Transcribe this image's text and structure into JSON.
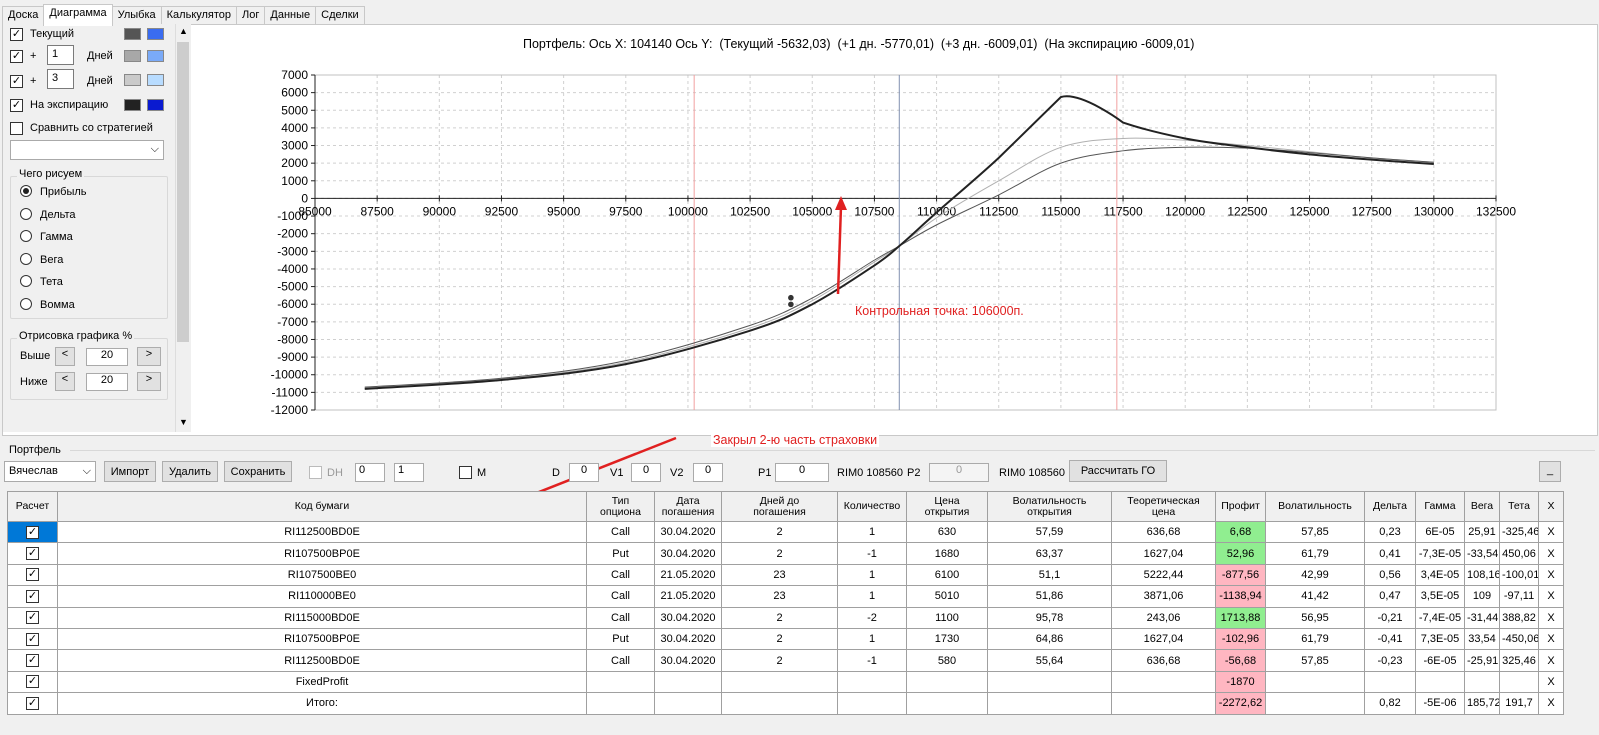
{
  "tabs": [
    "Доска",
    "Диаграмма",
    "Улыбка",
    "Калькулятор",
    "Лог",
    "Данные",
    "Сделки"
  ],
  "active_tab": "Диаграмма",
  "left_panel": {
    "current_label": "Текущий",
    "plus_label": "+",
    "days_label": "Дней",
    "plus1_value": "1",
    "plus3_value": "3",
    "expiry_label": "На экспирацию",
    "compare_label": "Сравнить со стратегией",
    "draw_group_title": "Чего рисуем",
    "radios": [
      "Прибыль",
      "Дельта",
      "Гамма",
      "Вега",
      "Тета",
      "Вомма"
    ],
    "selected_radio": "Прибыль",
    "render_group_title": "Отрисовка графика %",
    "above_label": "Выше",
    "below_label": "Ниже",
    "above_value": "20",
    "below_value": "20",
    "arrow_left": "<",
    "arrow_right": ">",
    "swatch_colors": [
      [
        "#555555",
        "#3a6cf0"
      ],
      [
        "#a8a8a8",
        "#7aaaf8"
      ],
      [
        "#cacaca",
        "#b8dcff"
      ],
      [
        "#222222",
        "#0a1ad0"
      ]
    ]
  },
  "chart_header": "Портфель: Ось X: 104140 Ось Y:  (Текущий -5632,03)  (+1 дн. -5770,01)  (+3 дн. -6009,01)  (На экспирацию -6009,01)",
  "chart_annotation": "Контрольная точка: 106000п.",
  "arrow_annotation": "Закрыл 2-ю часть страховки",
  "chart_data": {
    "type": "line",
    "xlim": [
      85000,
      132500
    ],
    "ylim": [
      -12000,
      7000
    ],
    "x_ticks": [
      "85000",
      "87500",
      "90000",
      "92500",
      "95000",
      "97500",
      "100000",
      "102500",
      "105000",
      "107500",
      "110000",
      "112500",
      "115000",
      "117500",
      "120000",
      "122500",
      "125000",
      "127500",
      "130000",
      "132500"
    ],
    "y_ticks": [
      "7000",
      "6000",
      "5000",
      "4000",
      "3000",
      "2000",
      "1000",
      "0",
      "-1000",
      "-2000",
      "-3000",
      "-4000",
      "-5000",
      "-6000",
      "-7000",
      "-8000",
      "-9000",
      "-10000",
      "-11000",
      "-12000"
    ],
    "vertical_lines": [
      {
        "x": 100250,
        "color": "#f2a0a0"
      },
      {
        "x": 108500,
        "color": "#8090b0"
      },
      {
        "x": 117250,
        "color": "#f2a0a0"
      }
    ],
    "series": [
      {
        "color": "#222222",
        "width": 2,
        "x": [
          87000,
          92500,
          97500,
          102500,
          105000,
          107500,
          108500,
          110000,
          112500,
          115000,
          117500,
          120000,
          122500,
          125000,
          127500,
          130000
        ],
        "y": [
          -10800,
          -10300,
          -9400,
          -7500,
          -6000,
          -3800,
          -2700,
          -800,
          2300,
          5750,
          4300,
          3400,
          2900,
          2500,
          2200,
          1950
        ]
      },
      {
        "color": "#555555",
        "width": 1,
        "x": [
          87000,
          92500,
          97500,
          102500,
          105000,
          107500,
          108500,
          110000,
          112500,
          115000,
          117500,
          120000,
          122500,
          125000,
          127500,
          130000
        ],
        "y": [
          -10700,
          -10200,
          -9200,
          -7200,
          -5650,
          -3500,
          -2700,
          -1500,
          200,
          2000,
          2700,
          2900,
          2850,
          2600,
          2300,
          2050
        ]
      },
      {
        "color": "#b0b0b0",
        "width": 1,
        "x": [
          87000,
          92500,
          97500,
          102500,
          105000,
          107500,
          108500,
          110000,
          112500,
          115000,
          117500,
          120000,
          122500,
          125000,
          127500,
          130000
        ],
        "y": [
          -10750,
          -10250,
          -9300,
          -7350,
          -5800,
          -3600,
          -2700,
          -1100,
          1000,
          2900,
          3400,
          3300,
          3000,
          2650,
          2300,
          2050
        ]
      }
    ],
    "points": [
      {
        "x": 104140,
        "y": -5632
      },
      {
        "x": 104140,
        "y": -6009
      }
    ]
  },
  "portfolio": {
    "group_title": "Портфель",
    "account": "Вячеслав",
    "import_label": "Импорт",
    "delete_label": "Удалить",
    "save_label": "Сохранить",
    "dh_label": "DH",
    "dh_spin1": "0",
    "dh_spin2": "1",
    "m_label": "M",
    "d_label": "D",
    "d_value": "0",
    "v1_label": "V1",
    "v1_value": "0",
    "v2_label": "V2",
    "v2_value": "0",
    "p1_label": "P1",
    "p1_value": "0",
    "rim1_label": "RIM0 108560",
    "p2_label": "P2",
    "p2_value": "0",
    "rim2_label": "RIM0 108560",
    "calc_go_label": "Рассчитать ГО",
    "minimize_label": "_"
  },
  "table": {
    "headers": [
      "Расчет",
      "Код бумаги",
      "Тип\nопциона",
      "Дата\nпогашения",
      "Дней до\nпогашения",
      "Количество",
      "Цена\nоткрытия",
      "Волатильность\nоткрытия",
      "Теоретическая\nцена",
      "Профит",
      "Волатильность",
      "Дельта",
      "Гамма",
      "Вега",
      "Тета",
      "X"
    ],
    "rows": [
      [
        "RI112500BD0E",
        "Call",
        "30.04.2020",
        "2",
        "1",
        "630",
        "57,59",
        "636,68",
        "6,68",
        "57,85",
        "0,23",
        "6E-05",
        "25,91",
        "-325,46",
        "X"
      ],
      [
        "RI107500BP0E",
        "Put",
        "30.04.2020",
        "2",
        "-1",
        "1680",
        "63,37",
        "1627,04",
        "52,96",
        "61,79",
        "0,41",
        "-7,3E-05",
        "-33,54",
        "450,06",
        "X"
      ],
      [
        "RI107500BE0",
        "Call",
        "21.05.2020",
        "23",
        "1",
        "6100",
        "51,1",
        "5222,44",
        "-877,56",
        "42,99",
        "0,56",
        "3,4E-05",
        "108,16",
        "-100,01",
        "X"
      ],
      [
        "RI110000BE0",
        "Call",
        "21.05.2020",
        "23",
        "1",
        "5010",
        "51,86",
        "3871,06",
        "-1138,94",
        "41,42",
        "0,47",
        "3,5E-05",
        "109",
        "-97,11",
        "X"
      ],
      [
        "RI115000BD0E",
        "Call",
        "30.04.2020",
        "2",
        "-2",
        "1100",
        "95,78",
        "243,06",
        "1713,88",
        "56,95",
        "-0,21",
        "-7,4E-05",
        "-31,44",
        "388,82",
        "X"
      ],
      [
        "RI107500BP0E",
        "Put",
        "30.04.2020",
        "2",
        "1",
        "1730",
        "64,86",
        "1627,04",
        "-102,96",
        "61,79",
        "-0,41",
        "7,3E-05",
        "33,54",
        "-450,06",
        "X"
      ],
      [
        "RI112500BD0E",
        "Call",
        "30.04.2020",
        "2",
        "-1",
        "580",
        "55,64",
        "636,68",
        "-56,68",
        "57,85",
        "-0,23",
        "-6E-05",
        "-25,91",
        "325,46",
        "X"
      ],
      [
        "FixedProfit",
        "",
        "",
        "",
        "",
        "",
        "",
        "",
        "-1870",
        "",
        "",
        "",
        "",
        "",
        "X"
      ],
      [
        "Итого:",
        "",
        "",
        "",
        "",
        "",
        "",
        "",
        "-2272,62",
        "",
        "0,82",
        "-5E-06",
        "185,72",
        "191,7",
        "X"
      ]
    ]
  }
}
